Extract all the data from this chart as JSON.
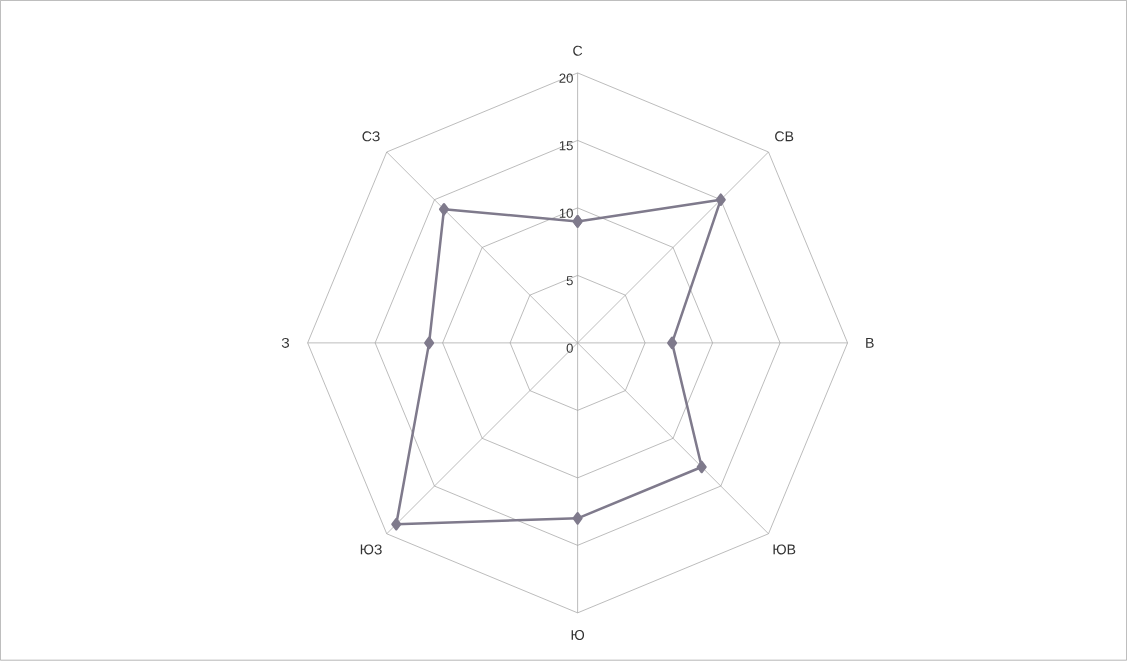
{
  "chart_data": {
    "type": "radar",
    "categories": [
      "С",
      "СВ",
      "В",
      "ЮВ",
      "Ю",
      "ЮЗ",
      "З",
      "СЗ"
    ],
    "series": [
      {
        "color": "#7f7a8c",
        "values": [
          9,
          15,
          7,
          13,
          13,
          19,
          11,
          14
        ]
      }
    ],
    "ylim": [
      0,
      20
    ],
    "yticks": [
      0,
      5,
      10,
      15,
      20
    ],
    "grid": true,
    "marker": "diamond"
  }
}
